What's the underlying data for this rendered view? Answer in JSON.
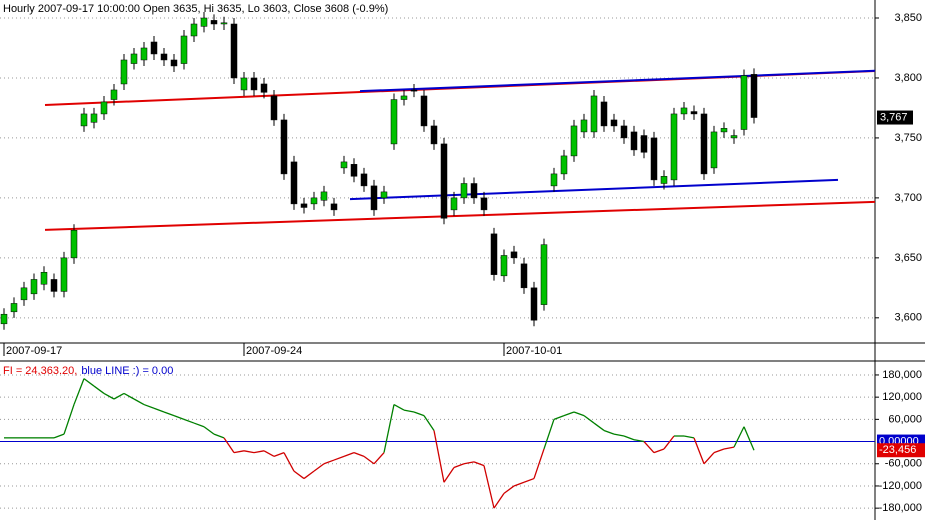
{
  "chart_data": [
    {
      "type": "candlestick",
      "title": "Hourly 2007-09-17 10:00:00 Open 3635, Hi 3635, Lo 3603, Close 3608 (-0.9%)",
      "categories": [
        "2007-09-17",
        null,
        null,
        null,
        null,
        null,
        null,
        null,
        null,
        null,
        null,
        null,
        null,
        null,
        null,
        null,
        null,
        null,
        null,
        null,
        null,
        null,
        null,
        null,
        "2007-09-24",
        null,
        null,
        null,
        null,
        null,
        null,
        null,
        null,
        null,
        null,
        null,
        null,
        null,
        null,
        null,
        null,
        null,
        null,
        null,
        null,
        null,
        null,
        null,
        null,
        null,
        "2007-10-01",
        null,
        null,
        null,
        null,
        null,
        null,
        null,
        null,
        null,
        null,
        null,
        null,
        null,
        null,
        null,
        null,
        null,
        null,
        null,
        null,
        null,
        null,
        null,
        null,
        null
      ],
      "open": [
        3595,
        3605,
        3615,
        3620,
        3628,
        3632,
        3622,
        3650,
        3760,
        3763,
        3770,
        3782,
        3795,
        3812,
        3815,
        3830,
        3820,
        3815,
        3812,
        3835,
        3843,
        3848,
        3845,
        3845,
        3790,
        3800,
        3795,
        3785,
        3765,
        3730,
        3695,
        3695,
        3698,
        3695,
        3725,
        3728,
        3720,
        3710,
        3700,
        3745,
        3782,
        3790,
        3785,
        3760,
        3745,
        3690,
        3700,
        3712,
        3700,
        3670,
        3635,
        3655,
        3645,
        3625,
        3611,
        3710,
        3720,
        3735,
        3755,
        3755,
        3780,
        3765,
        3760,
        3755,
        3752,
        3750,
        3712,
        3715,
        3770,
        3772,
        3770,
        3725,
        3755,
        3750,
        3757,
        3803
      ],
      "high": [
        3608,
        3617,
        3630,
        3637,
        3643,
        3637,
        3655,
        3678,
        3775,
        3775,
        3785,
        3795,
        3820,
        3825,
        3830,
        3835,
        3825,
        3820,
        3840,
        3850,
        3855,
        3853,
        3851,
        3850,
        3805,
        3805,
        3800,
        3790,
        3770,
        3735,
        3700,
        3705,
        3710,
        3700,
        3735,
        3733,
        3725,
        3715,
        3710,
        3787,
        3790,
        3795,
        3790,
        3765,
        3750,
        3705,
        3717,
        3717,
        3705,
        3675,
        3657,
        3660,
        3650,
        3630,
        3666,
        3725,
        3740,
        3765,
        3770,
        3790,
        3785,
        3770,
        3765,
        3760,
        3757,
        3755,
        3723,
        3775,
        3780,
        3777,
        3775,
        3760,
        3763,
        3757,
        3807,
        3808
      ],
      "low": [
        3590,
        3600,
        3610,
        3615,
        3623,
        3617,
        3617,
        3645,
        3755,
        3758,
        3765,
        3777,
        3790,
        3807,
        3810,
        3815,
        3810,
        3805,
        3807,
        3830,
        3838,
        3840,
        3840,
        3795,
        3785,
        3785,
        3783,
        3760,
        3715,
        3690,
        3687,
        3690,
        3693,
        3685,
        3720,
        3713,
        3705,
        3685,
        3695,
        3740,
        3777,
        3784,
        3755,
        3740,
        3678,
        3685,
        3695,
        3695,
        3685,
        3631,
        3630,
        3645,
        3620,
        3593,
        3606,
        3705,
        3715,
        3730,
        3750,
        3750,
        3755,
        3755,
        3745,
        3735,
        3733,
        3710,
        3707,
        3710,
        3765,
        3765,
        3715,
        3720,
        3750,
        3745,
        3752,
        3762
      ],
      "close": [
        3603,
        3612,
        3625,
        3632,
        3638,
        3622,
        3650,
        3673,
        3770,
        3770,
        3780,
        3790,
        3815,
        3820,
        3825,
        3820,
        3815,
        3810,
        3835,
        3845,
        3850,
        3845,
        3846,
        3800,
        3800,
        3790,
        3788,
        3765,
        3720,
        3695,
        3692,
        3700,
        3705,
        3690,
        3730,
        3718,
        3710,
        3690,
        3705,
        3782,
        3785,
        3789,
        3760,
        3745,
        3683,
        3700,
        3712,
        3700,
        3690,
        3636,
        3652,
        3650,
        3625,
        3598,
        3661,
        3720,
        3735,
        3760,
        3765,
        3785,
        3760,
        3760,
        3750,
        3740,
        3738,
        3715,
        3718,
        3770,
        3775,
        3770,
        3720,
        3755,
        3758,
        3752,
        3802,
        3767
      ],
      "up_color": "#00c000",
      "down_color": "#000000",
      "last_price_label": "3,767",
      "trend_lines": [
        {
          "color": "#e00000",
          "x": [
            4.1,
            87.1
          ],
          "values": [
            3777.5,
            3805.8
          ]
        },
        {
          "color": "#e00000",
          "x": [
            4.1,
            87.1
          ],
          "values": [
            3673.3,
            3696.7
          ]
        },
        {
          "color": "#0000cc",
          "x": [
            35.6,
            87.1
          ],
          "values": [
            3789,
            3806
          ]
        },
        {
          "color": "#0000cc",
          "x": [
            34.6,
            83.4
          ],
          "values": [
            3699,
            3715
          ]
        }
      ],
      "ylim": [
        3579,
        3865
      ],
      "yticks": [
        {
          "value": 3600,
          "label": "3,600"
        },
        {
          "value": 3650,
          "label": "3,650"
        },
        {
          "value": 3700,
          "label": "3,700"
        },
        {
          "value": 3750,
          "label": "3,750"
        },
        {
          "value": 3800,
          "label": "3,800"
        },
        {
          "value": 3850,
          "label": "3,850"
        }
      ],
      "grid": true
    },
    {
      "type": "line",
      "legend": [
        {
          "text": "FI = 24,363.20,",
          "color": "#e00000"
        },
        {
          "text": "blue LINE :) = 0.00",
          "color": "#0000cc"
        }
      ],
      "values": [
        10000,
        10000,
        10000,
        10000,
        10000,
        10000,
        20000,
        100000,
        170000,
        150000,
        130000,
        115000,
        130000,
        115000,
        100000,
        90000,
        80000,
        70000,
        60000,
        50000,
        40000,
        20000,
        10000,
        -30000,
        -25000,
        -30000,
        -25000,
        -40000,
        -30000,
        -80000,
        -100000,
        -80000,
        -60000,
        -50000,
        -40000,
        -30000,
        -40000,
        -60000,
        -30000,
        100000,
        85000,
        80000,
        70000,
        30000,
        -110000,
        -70000,
        -60000,
        -55000,
        -65000,
        -180000,
        -140000,
        -120000,
        -110000,
        -100000,
        -20000,
        60000,
        70000,
        80000,
        70000,
        50000,
        30000,
        20000,
        15000,
        5000,
        0,
        -30000,
        -20000,
        15000,
        15000,
        10000,
        -60000,
        -30000,
        -20000,
        -15000,
        40000,
        -23456
      ],
      "up_color": "#008000",
      "down_color": "#d00000",
      "last_value_label": "-23,456",
      "blue_line": {
        "value": 0,
        "label": "0.00000",
        "color": "#0000cc"
      },
      "ylim": [
        -212000,
        215000
      ],
      "yticks": [
        {
          "value": 180000,
          "label": "180,000"
        },
        {
          "value": 120000,
          "label": "120,000"
        },
        {
          "value": 60000,
          "label": "60,000"
        },
        {
          "value": -60000,
          "label": "-60,000"
        },
        {
          "value": -120000,
          "label": "-120,000"
        },
        {
          "value": -180000,
          "label": "-180,000"
        }
      ],
      "grid": true
    }
  ]
}
